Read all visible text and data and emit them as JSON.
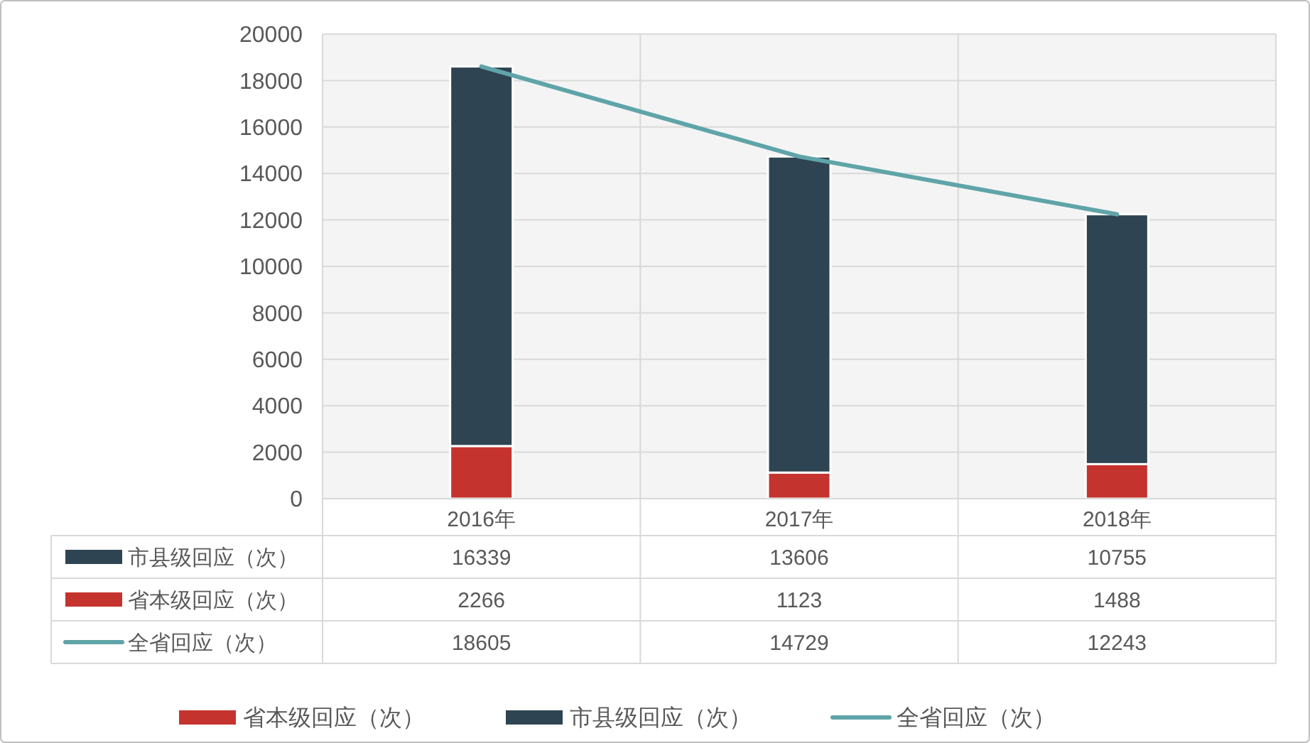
{
  "chart_data": {
    "type": "bar",
    "stacked": true,
    "categories": [
      "2016年",
      "2017年",
      "2018年"
    ],
    "series": [
      {
        "name": "省本级回应（次）",
        "color": "#c5332e",
        "values": [
          2266,
          1123,
          1488
        ]
      },
      {
        "name": "市县级回应（次）",
        "color": "#2e4452",
        "values": [
          16339,
          13606,
          10755
        ]
      },
      {
        "name": "全省回应（次）",
        "type": "line",
        "color": "#5fa4a8",
        "values": [
          18605,
          14729,
          12243
        ]
      }
    ],
    "ylim": [
      0,
      20000
    ],
    "yticks": [
      0,
      2000,
      4000,
      6000,
      8000,
      10000,
      12000,
      14000,
      16000,
      18000,
      20000
    ],
    "grid": true,
    "legend": "bottom",
    "data_labels": true
  }
}
